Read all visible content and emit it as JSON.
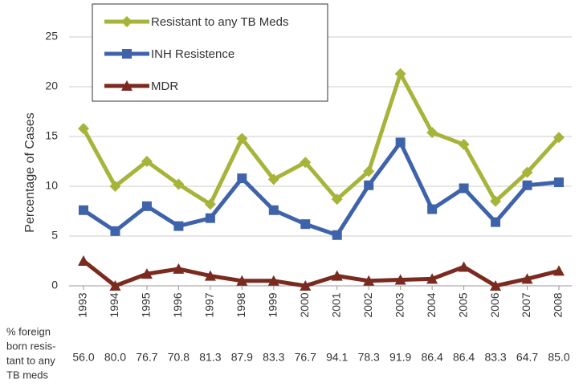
{
  "chart_data": {
    "type": "line",
    "y_label": "Percentage of Cases",
    "categories": [
      "1993",
      "1994",
      "1995",
      "1996",
      "1997",
      "1998",
      "1999",
      "2000",
      "2001",
      "2002",
      "2003",
      "2004",
      "2005",
      "2006",
      "2007",
      "2008"
    ],
    "series": [
      {
        "name": "Resistant to any TB Meds",
        "color": "#a7b43a",
        "marker": "diamond",
        "values": [
          15.8,
          10.0,
          12.5,
          10.2,
          8.2,
          14.8,
          10.7,
          12.4,
          8.7,
          11.5,
          21.3,
          15.4,
          14.2,
          8.5,
          11.4,
          14.9
        ]
      },
      {
        "name": "INH Resistence",
        "color": "#3f63ab",
        "marker": "square",
        "values": [
          7.6,
          5.5,
          8.0,
          6.0,
          6.8,
          10.8,
          7.6,
          6.2,
          5.1,
          10.1,
          14.4,
          7.7,
          9.8,
          6.4,
          10.1,
          10.4
        ]
      },
      {
        "name": "MDR",
        "color": "#7a2a1f",
        "marker": "triangle",
        "values": [
          2.5,
          0,
          1.2,
          1.7,
          1.0,
          0.5,
          0.5,
          0,
          1.0,
          0.5,
          0.6,
          0.7,
          1.9,
          0,
          0.7,
          1.5
        ]
      }
    ],
    "ylim": [
      0,
      25
    ],
    "yticks": [
      0,
      5,
      10,
      15,
      20,
      25
    ],
    "grid": true,
    "footer": {
      "label_lines": [
        "% foreign",
        "born resis-",
        "tant to any",
        "TB meds"
      ],
      "values": [
        "56.0",
        "80.0",
        "76.7",
        "70.8",
        "81.3",
        "87.9",
        "83.3",
        "76.7",
        "94.1",
        "78.3",
        "91.9",
        "86.4",
        "86.4",
        "83.3",
        "64.7",
        "85.0"
      ]
    }
  }
}
